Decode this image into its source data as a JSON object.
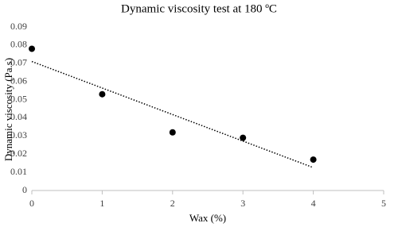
{
  "chart_data": {
    "type": "scatter",
    "title": "Dynamic viscosity test at 180 ºC",
    "x_label": "Wax (%)",
    "y_label": "Dynamic viscosity (Pa.s)",
    "x": [
      0,
      1,
      2,
      3,
      4
    ],
    "values": [
      0.078,
      0.053,
      0.032,
      0.029,
      0.017
    ],
    "color": "#000000",
    "xlim": [
      0,
      5
    ],
    "xticks": [
      0,
      1,
      2,
      3,
      4,
      5
    ],
    "ylim": [
      0,
      0.09
    ],
    "yticks": [
      0,
      0.01,
      0.02,
      0.03,
      0.04,
      0.05,
      0.06,
      0.07,
      0.08,
      0.09
    ],
    "trendline": "linear",
    "grid": false
  }
}
